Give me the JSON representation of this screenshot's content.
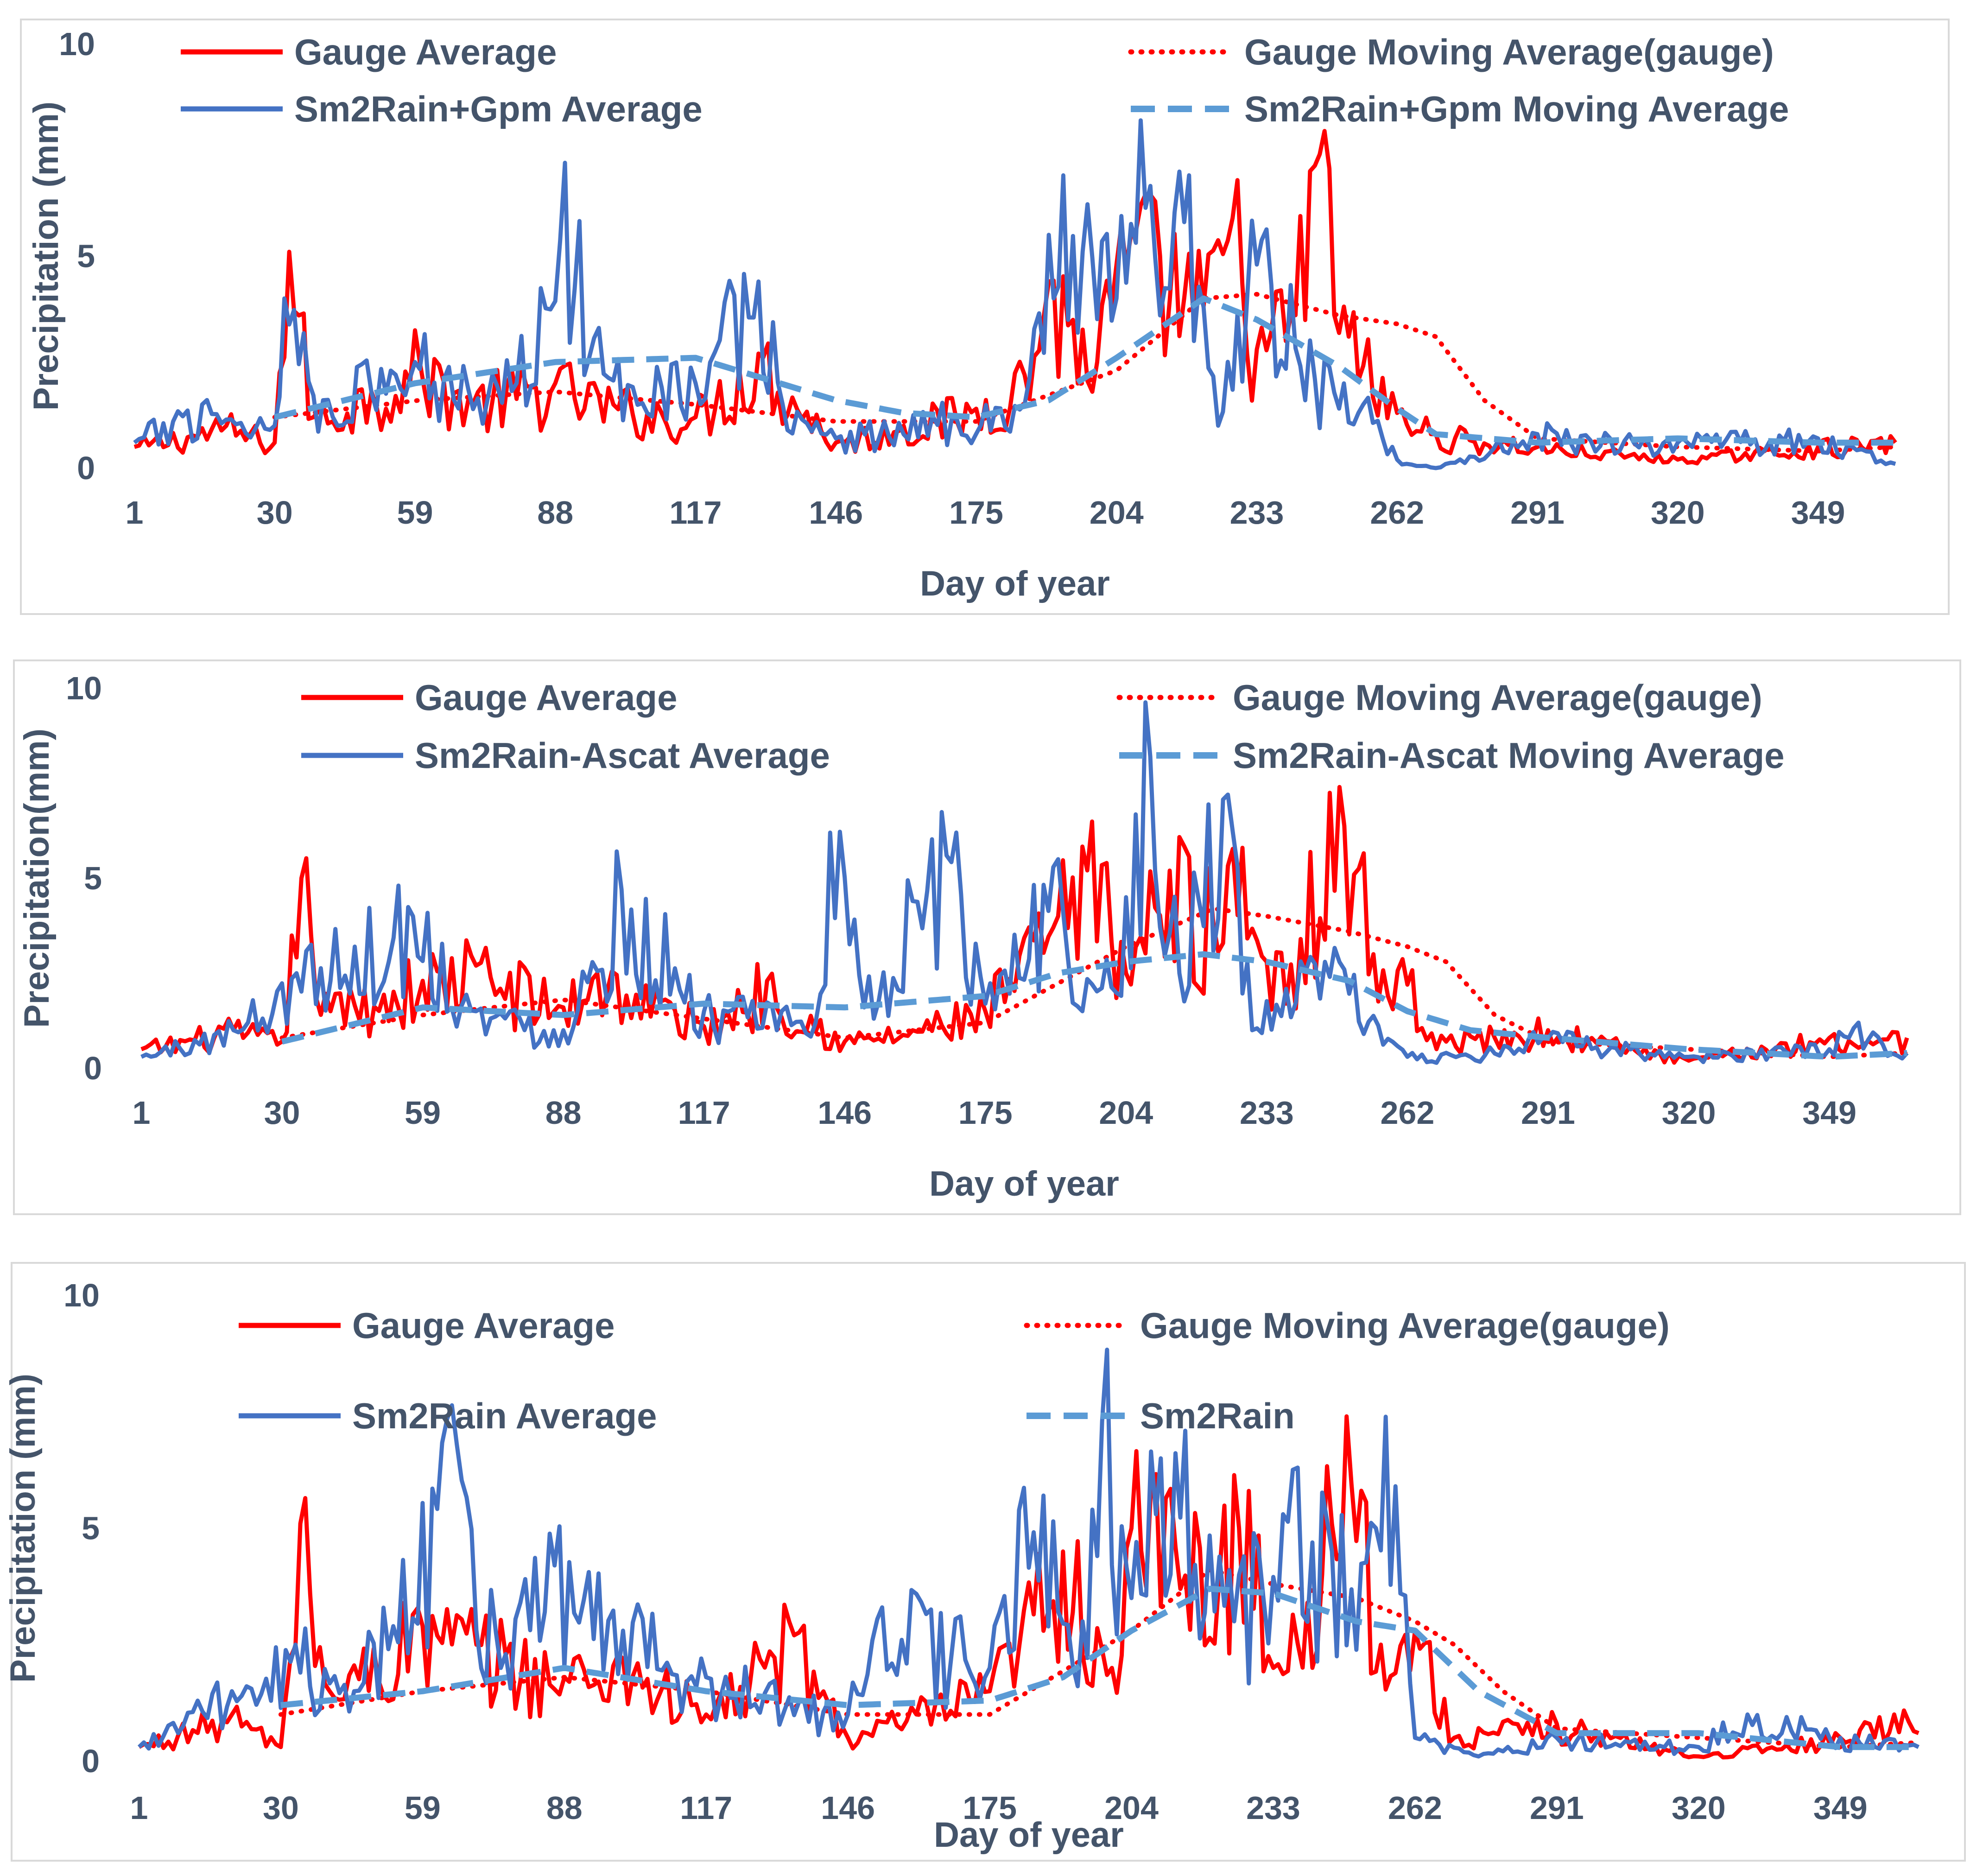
{
  "colors": {
    "gauge": "#ff0000",
    "satellite": "#4472c4",
    "satellite_ma": "#5b9bd5",
    "text": "#44546a",
    "frame": "#d9d9d9"
  },
  "chart_data": [
    {
      "type": "line",
      "xlabel": "Day of year",
      "ylabel": "Precipitation (mm)",
      "ylim": [
        0,
        10
      ],
      "yticks": [
        "0",
        "5",
        "10"
      ],
      "xticks": [
        "1",
        "30",
        "59",
        "88",
        "117",
        "146",
        "175",
        "204",
        "233",
        "262",
        "291",
        "320",
        "349"
      ],
      "legend": [
        "Gauge Average",
        "Gauge Moving  Average(gauge)",
        "Sm2Rain+Gpm Average",
        "Sm2Rain+Gpm Moving  Average"
      ],
      "series": [
        {
          "name": "Gauge Average",
          "style": "solid",
          "color": "gauge",
          "days": [
            1,
            20,
            30,
            33,
            35,
            38,
            50,
            60,
            70,
            88,
            100,
            117,
            130,
            146,
            160,
            175,
            185,
            190,
            200,
            204,
            213,
            222,
            228,
            233,
            240,
            246,
            252,
            262,
            270,
            291,
            320,
            349,
            365
          ],
          "values": [
            0.5,
            1.0,
            0.6,
            5.1,
            3.6,
            1.2,
            1.8,
            2.5,
            1.6,
            2.0,
            1.5,
            1.2,
            2.7,
            0.6,
            1.0,
            1.4,
            2.2,
            4.4,
            2.5,
            4.8,
            5.0,
            3.8,
            5.9,
            2.8,
            3.6,
            7.4,
            3.1,
            1.3,
            0.8,
            0.5,
            0.2,
            0.5,
            0.6
          ]
        },
        {
          "name": "Gauge Moving  Average(gauge)",
          "style": "dotted",
          "color": "gauge",
          "days": [
            30,
            60,
            88,
            117,
            146,
            175,
            204,
            222,
            233,
            250,
            262,
            270,
            280,
            291,
            320,
            349,
            365
          ],
          "values": [
            1.2,
            1.6,
            1.8,
            1.5,
            1.1,
            1.1,
            2.3,
            4.0,
            4.1,
            3.6,
            3.4,
            3.1,
            1.6,
            0.7,
            0.5,
            0.4,
            0.5
          ]
        },
        {
          "name": "Sm2Rain+Gpm Average",
          "style": "solid",
          "color": "satellite",
          "days": [
            1,
            15,
            30,
            32,
            40,
            59,
            80,
            90,
            95,
            117,
            130,
            135,
            146,
            170,
            185,
            190,
            204,
            209,
            213,
            218,
            225,
            233,
            245,
            255,
            262,
            270,
            291,
            320,
            349,
            365
          ],
          "values": [
            0.6,
            1.5,
            1.0,
            4.0,
            1.6,
            2.5,
            2.0,
            7.2,
            2.6,
            2.0,
            4.4,
            1.5,
            0.7,
            1.2,
            1.5,
            5.5,
            4.0,
            8.2,
            3.6,
            5.8,
            1.0,
            4.8,
            2.1,
            1.5,
            0.2,
            0.0,
            0.8,
            0.6,
            0.7,
            0.1
          ]
        },
        {
          "name": "Sm2Rain+Gpm Moving  Average",
          "style": "dashed",
          "color": "satellite_ma",
          "days": [
            30,
            59,
            88,
            117,
            146,
            160,
            175,
            190,
            204,
            222,
            233,
            250,
            262,
            270,
            291,
            320,
            349,
            365
          ],
          "values": [
            1.2,
            2.0,
            2.5,
            2.6,
            1.6,
            1.3,
            1.2,
            1.6,
            2.6,
            4.0,
            3.5,
            2.4,
            1.4,
            0.8,
            0.6,
            0.7,
            0.6,
            0.6
          ]
        }
      ]
    },
    {
      "type": "line",
      "xlabel": "Day of year",
      "ylabel": "Precipitation(mm)",
      "ylim": [
        0,
        10
      ],
      "yticks": [
        "0",
        "5",
        "10"
      ],
      "xticks": [
        "1",
        "30",
        "59",
        "88",
        "117",
        "146",
        "175",
        "204",
        "233",
        "262",
        "291",
        "320",
        "349"
      ],
      "legend": [
        "Gauge Average",
        "Gauge Moving  Average(gauge)",
        "Sm2Rain-Ascat Average",
        "Sm2Rain-Ascat Moving  Average"
      ],
      "series": [
        {
          "name": "Gauge Average",
          "style": "solid",
          "color": "gauge",
          "days": [
            1,
            20,
            30,
            34,
            36,
            40,
            59,
            70,
            88,
            95,
            117,
            130,
            146,
            160,
            175,
            190,
            200,
            204,
            213,
            222,
            228,
            233,
            240,
            248,
            255,
            262,
            270,
            291,
            320,
            349,
            365
          ],
          "values": [
            0.5,
            1.0,
            0.7,
            5.0,
            3.5,
            1.5,
            2.3,
            2.7,
            1.6,
            2.5,
            1.1,
            2.3,
            0.7,
            1.0,
            1.5,
            4.0,
            5.4,
            2.5,
            5.2,
            3.8,
            5.8,
            2.8,
            3.4,
            7.4,
            3.0,
            2.2,
            0.7,
            1.0,
            0.2,
            0.8,
            0.8
          ]
        },
        {
          "name": "Gauge Moving  Average(gauge)",
          "style": "dotted",
          "color": "gauge",
          "days": [
            30,
            59,
            88,
            117,
            146,
            175,
            204,
            222,
            233,
            250,
            262,
            270,
            280,
            291,
            320,
            349,
            365
          ],
          "values": [
            0.8,
            1.4,
            1.8,
            1.3,
            0.8,
            1.2,
            3.2,
            4.2,
            4.0,
            3.6,
            3.2,
            2.8,
            1.4,
            0.7,
            0.5,
            0.3,
            0.4
          ]
        },
        {
          "name": "Sm2Rain-Ascat Average",
          "style": "solid",
          "color": "satellite",
          "days": [
            1,
            20,
            33,
            45,
            57,
            70,
            88,
            100,
            117,
            140,
            143,
            150,
            160,
            167,
            175,
            190,
            195,
            204,
            209,
            215,
            225,
            230,
            245,
            262,
            275,
            291,
            320,
            349,
            355,
            365
          ],
          "values": [
            0.3,
            1.0,
            2.5,
            3.2,
            4.0,
            1.5,
            1.0,
            4.7,
            1.5,
            1.2,
            6.2,
            1.6,
            4.4,
            5.6,
            1.7,
            5.5,
            1.5,
            4.5,
            8.2,
            2.5,
            7.2,
            1.0,
            2.8,
            0.3,
            0.3,
            0.8,
            0.3,
            0.5,
            1.2,
            0.4
          ]
        },
        {
          "name": "Sm2Rain-Ascat Moving  Average",
          "style": "dashed",
          "color": "satellite_ma",
          "days": [
            30,
            59,
            88,
            117,
            146,
            175,
            190,
            204,
            220,
            233,
            250,
            262,
            275,
            291,
            320,
            349,
            365
          ],
          "values": [
            0.7,
            1.6,
            1.4,
            1.7,
            1.6,
            1.9,
            2.5,
            2.8,
            3.0,
            2.8,
            2.3,
            1.5,
            1.0,
            0.8,
            0.5,
            0.3,
            0.4
          ]
        }
      ]
    },
    {
      "type": "line",
      "xlabel": "Day of year",
      "ylabel": "Precipitation (mm)",
      "ylim": [
        0,
        10
      ],
      "yticks": [
        "0",
        "5",
        "10"
      ],
      "xticks": [
        "1",
        "30",
        "59",
        "88",
        "117",
        "146",
        "175",
        "204",
        "233",
        "262",
        "291",
        "320",
        "349"
      ],
      "legend": [
        "Gauge Average",
        "Gauge Moving  Average(gauge)",
        "Sm2Rain Average",
        "Sm2Rain"
      ],
      "series": [
        {
          "name": "Gauge Average",
          "style": "solid",
          "color": "gauge",
          "days": [
            1,
            20,
            30,
            34,
            36,
            40,
            59,
            70,
            88,
            100,
            117,
            135,
            146,
            160,
            175,
            190,
            200,
            204,
            213,
            222,
            228,
            233,
            240,
            248,
            255,
            262,
            270,
            291,
            320,
            349,
            360,
            365
          ],
          "values": [
            0.3,
            1.0,
            0.3,
            5.1,
            3.6,
            1.5,
            2.9,
            2.5,
            1.8,
            2.2,
            1.0,
            2.7,
            0.5,
            1.0,
            1.5,
            4.5,
            2.0,
            5.0,
            4.6,
            4.0,
            5.8,
            2.0,
            3.4,
            7.4,
            2.5,
            2.8,
            0.5,
            0.8,
            0.1,
            0.5,
            1.0,
            0.6
          ]
        },
        {
          "name": "Gauge Moving  Average(gauge)",
          "style": "dotted",
          "color": "gauge",
          "days": [
            30,
            59,
            88,
            117,
            146,
            175,
            204,
            220,
            233,
            250,
            262,
            270,
            280,
            291,
            320,
            349,
            365
          ],
          "values": [
            1.0,
            1.5,
            1.8,
            1.5,
            1.0,
            1.0,
            2.8,
            4.1,
            3.8,
            3.5,
            3.0,
            2.5,
            1.5,
            0.7,
            0.5,
            0.3,
            0.4
          ]
        },
        {
          "name": "Sm2Rain Average",
          "style": "solid",
          "color": "satellite",
          "days": [
            1,
            20,
            33,
            45,
            66,
            75,
            86,
            100,
            117,
            146,
            153,
            175,
            186,
            194,
            198,
            204,
            210,
            225,
            235,
            245,
            258,
            262,
            275,
            291,
            320,
            330,
            349,
            365
          ],
          "values": [
            0.3,
            1.5,
            2.5,
            1.5,
            6.8,
            2.0,
            4.2,
            2.8,
            1.8,
            1.0,
            3.3,
            2.0,
            5.7,
            3.0,
            7.3,
            3.5,
            6.5,
            3.0,
            5.3,
            4.5,
            5.9,
            0.5,
            0.1,
            0.5,
            0.3,
            1.0,
            0.5,
            0.3
          ]
        },
        {
          "name": "Sm2Rain",
          "style": "dashed",
          "color": "satellite_ma",
          "days": [
            30,
            59,
            88,
            117,
            146,
            175,
            190,
            204,
            220,
            233,
            250,
            262,
            275,
            291,
            320,
            349,
            365
          ],
          "values": [
            1.2,
            1.5,
            2.0,
            1.5,
            1.2,
            1.3,
            1.8,
            2.8,
            3.7,
            3.6,
            3.0,
            2.8,
            1.5,
            0.6,
            0.6,
            0.3,
            0.3
          ]
        }
      ]
    }
  ]
}
